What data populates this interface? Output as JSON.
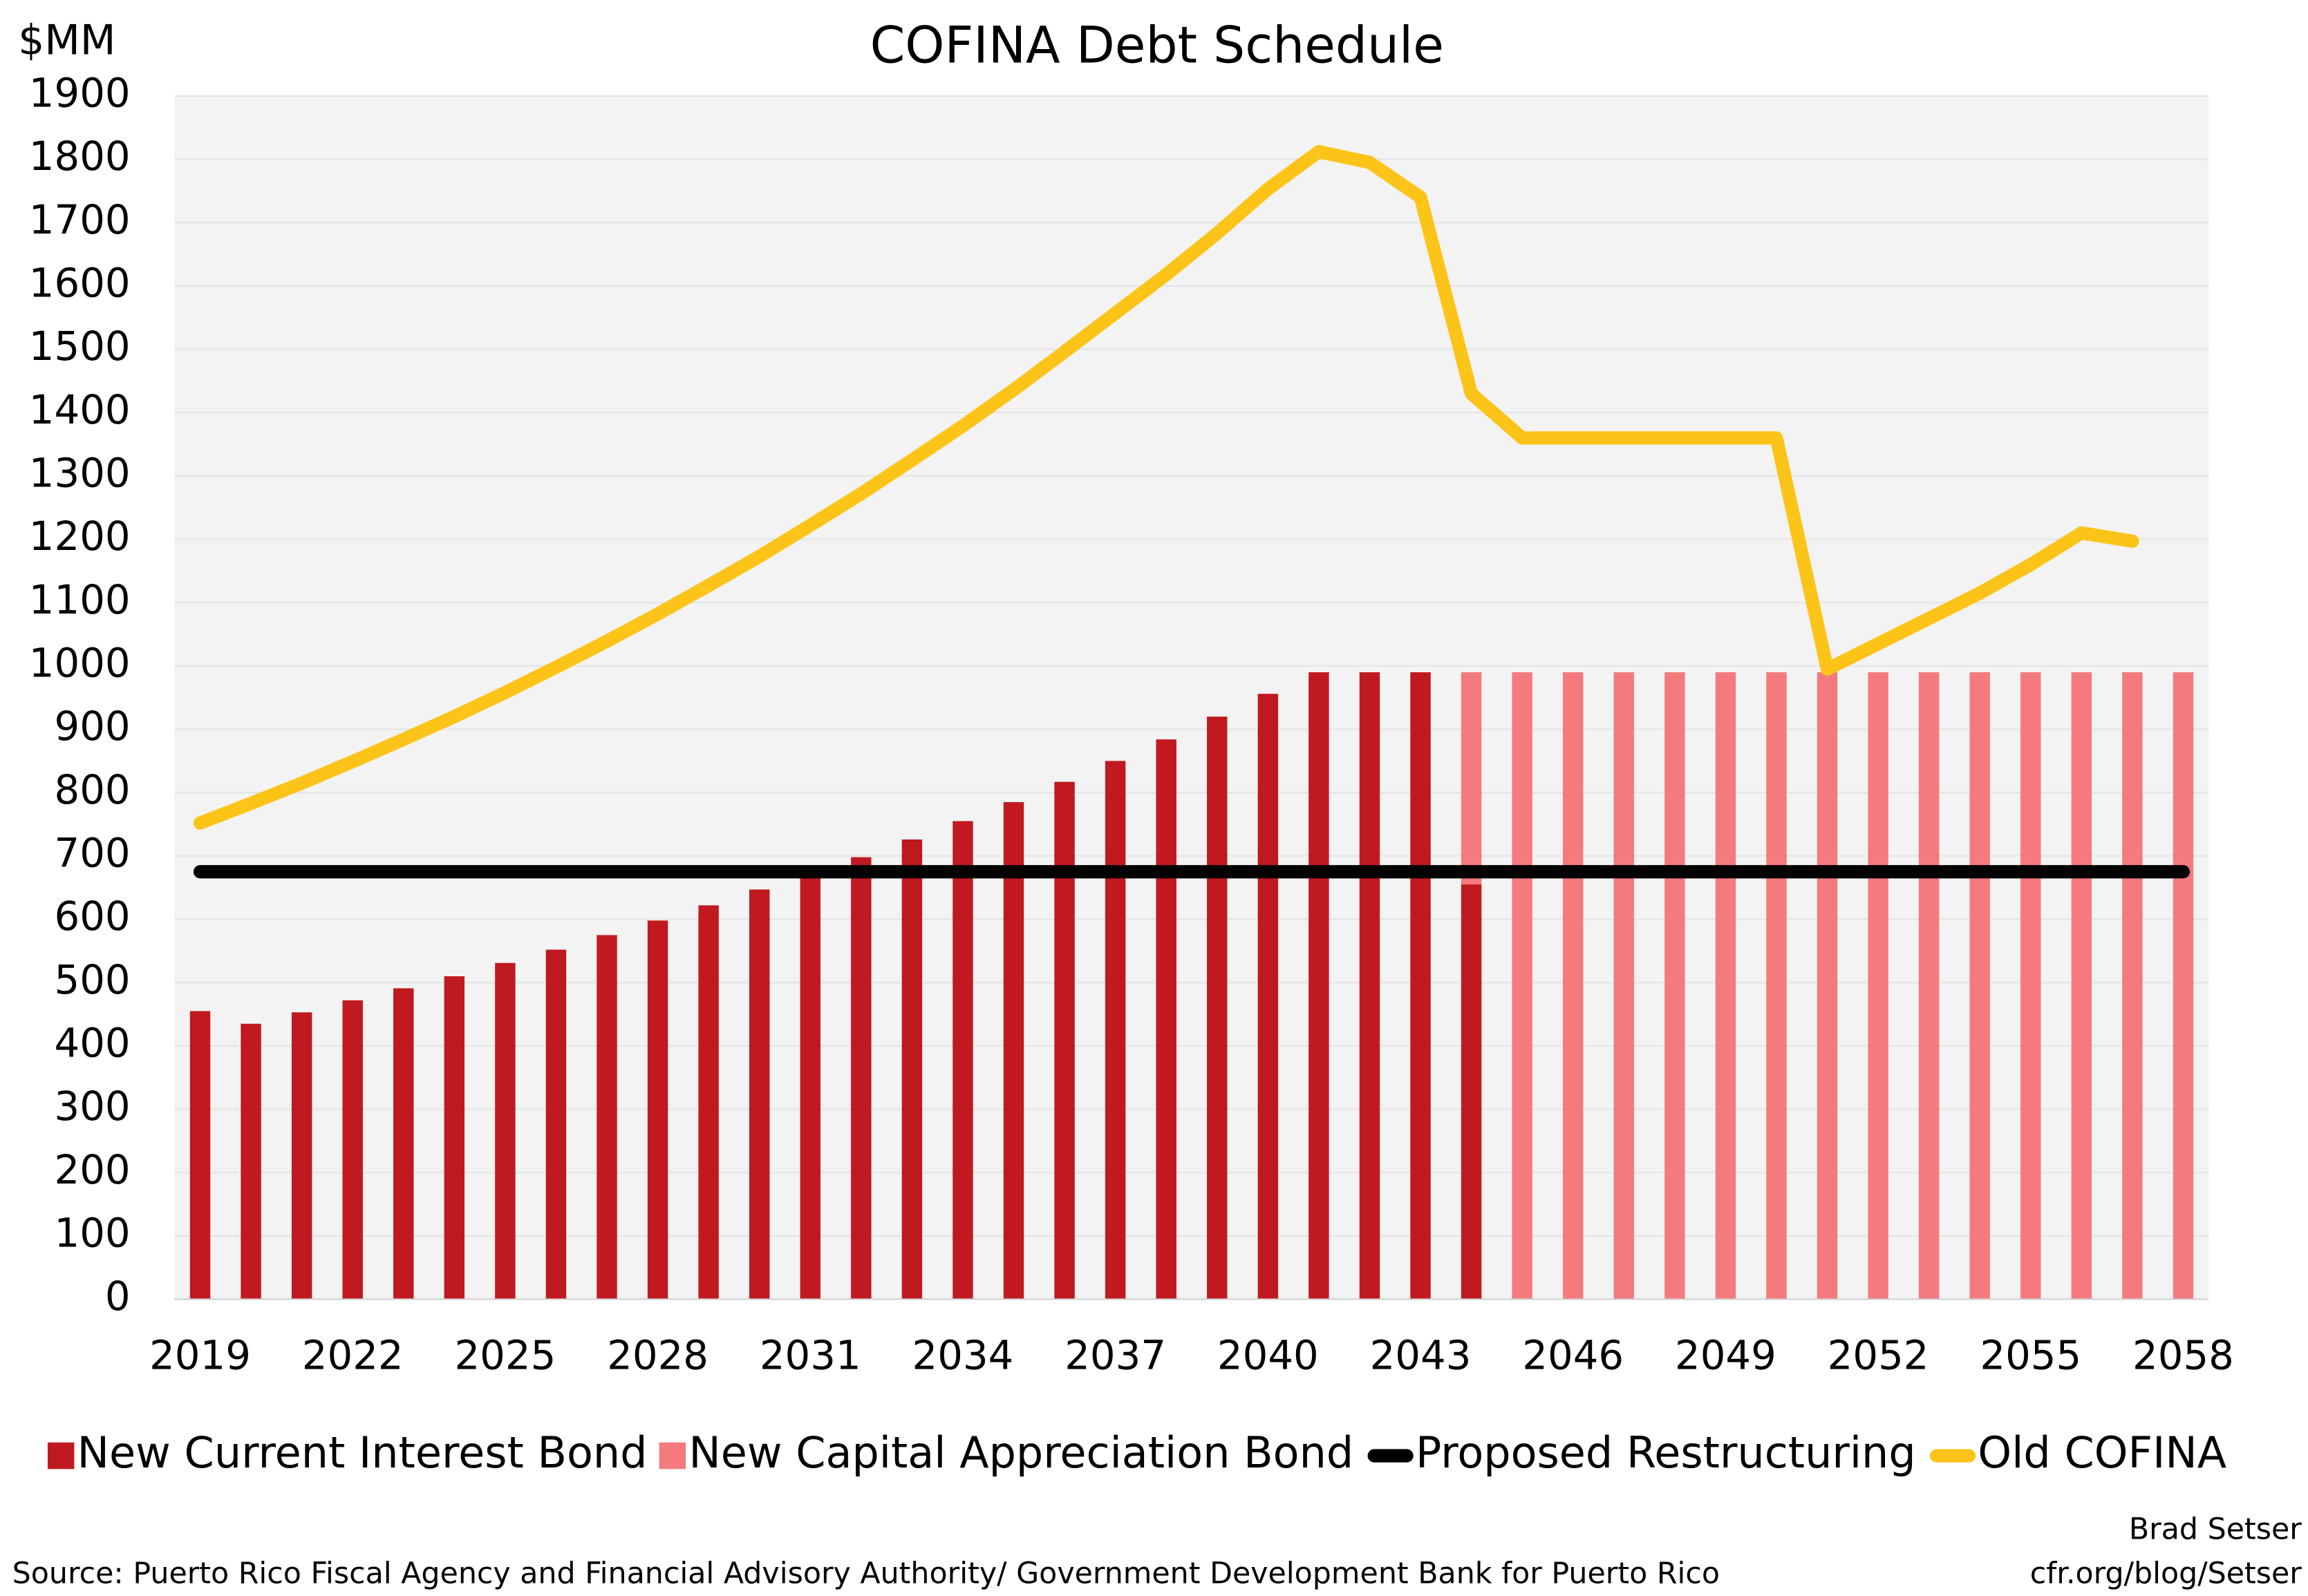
{
  "chart_data": {
    "type": "bar",
    "title": "COFINA Debt Schedule",
    "y_label": "$MM",
    "x": [
      2019,
      2020,
      2021,
      2022,
      2023,
      2024,
      2025,
      2026,
      2027,
      2028,
      2029,
      2030,
      2031,
      2032,
      2033,
      2034,
      2035,
      2036,
      2037,
      2038,
      2039,
      2040,
      2041,
      2042,
      2043,
      2044,
      2045,
      2046,
      2047,
      2048,
      2049,
      2050,
      2051,
      2052,
      2053,
      2054,
      2055,
      2056,
      2057,
      2058
    ],
    "xlim": [
      2018.5,
      2058.5
    ],
    "xticks": [
      2019,
      2022,
      2025,
      2028,
      2031,
      2034,
      2037,
      2040,
      2043,
      2046,
      2049,
      2052,
      2055,
      2058
    ],
    "ylim": [
      0,
      1900
    ],
    "yticks": [
      0,
      100,
      200,
      300,
      400,
      500,
      600,
      700,
      800,
      900,
      1000,
      1100,
      1200,
      1300,
      1400,
      1500,
      1600,
      1700,
      1800,
      1900
    ],
    "stacked": true,
    "series": [
      {
        "name": "New Current Interest Bond",
        "type": "bar",
        "color": "#c0191f",
        "values": [
          455,
          435,
          453,
          472,
          491,
          510,
          531,
          552,
          575,
          598,
          622,
          647,
          672,
          698,
          726,
          755,
          785,
          817,
          850,
          884,
          920,
          956,
          990,
          990,
          990,
          655,
          null,
          null,
          null,
          null,
          null,
          null,
          null,
          null,
          null,
          null,
          null,
          null,
          null,
          null
        ]
      },
      {
        "name": "New Capital Appreciation Bond",
        "type": "bar",
        "color": "#f47a7e",
        "values": [
          null,
          null,
          null,
          null,
          null,
          null,
          null,
          null,
          null,
          null,
          null,
          null,
          null,
          null,
          null,
          null,
          null,
          null,
          null,
          null,
          null,
          null,
          null,
          null,
          null,
          335,
          990,
          990,
          990,
          990,
          990,
          990,
          990,
          990,
          990,
          990,
          990,
          990,
          990,
          990
        ]
      },
      {
        "name": "Proposed Restructuring",
        "type": "line",
        "color": "#000000",
        "values": [
          675,
          675,
          675,
          675,
          675,
          675,
          675,
          675,
          675,
          675,
          675,
          675,
          675,
          675,
          675,
          675,
          675,
          675,
          675,
          675,
          675,
          675,
          675,
          675,
          675,
          675,
          675,
          675,
          675,
          675,
          675,
          675,
          675,
          675,
          675,
          675,
          675,
          675,
          675,
          675
        ]
      },
      {
        "name": "Old COFINA",
        "type": "line",
        "color": "#fcc419",
        "values": [
          752,
          783,
          815,
          849,
          884,
          920,
          958,
          998,
          1039,
          1082,
          1127,
          1173,
          1222,
          1272,
          1325,
          1379,
          1436,
          1496,
          1557,
          1618,
          1683,
          1753,
          1812,
          1795,
          1740,
          1430,
          1360,
          1360,
          1360,
          1360,
          1360,
          1360,
          995,
          1035,
          1075,
          1115,
          1160,
          1210,
          1197,
          null
        ]
      }
    ],
    "source": "Source: Puerto Rico Fiscal Agency and Financial Advisory Authority/ Government Development Bank for Puerto Rico",
    "credit": [
      "Brad Setser",
      "cfr.org/blog/Setser"
    ]
  }
}
